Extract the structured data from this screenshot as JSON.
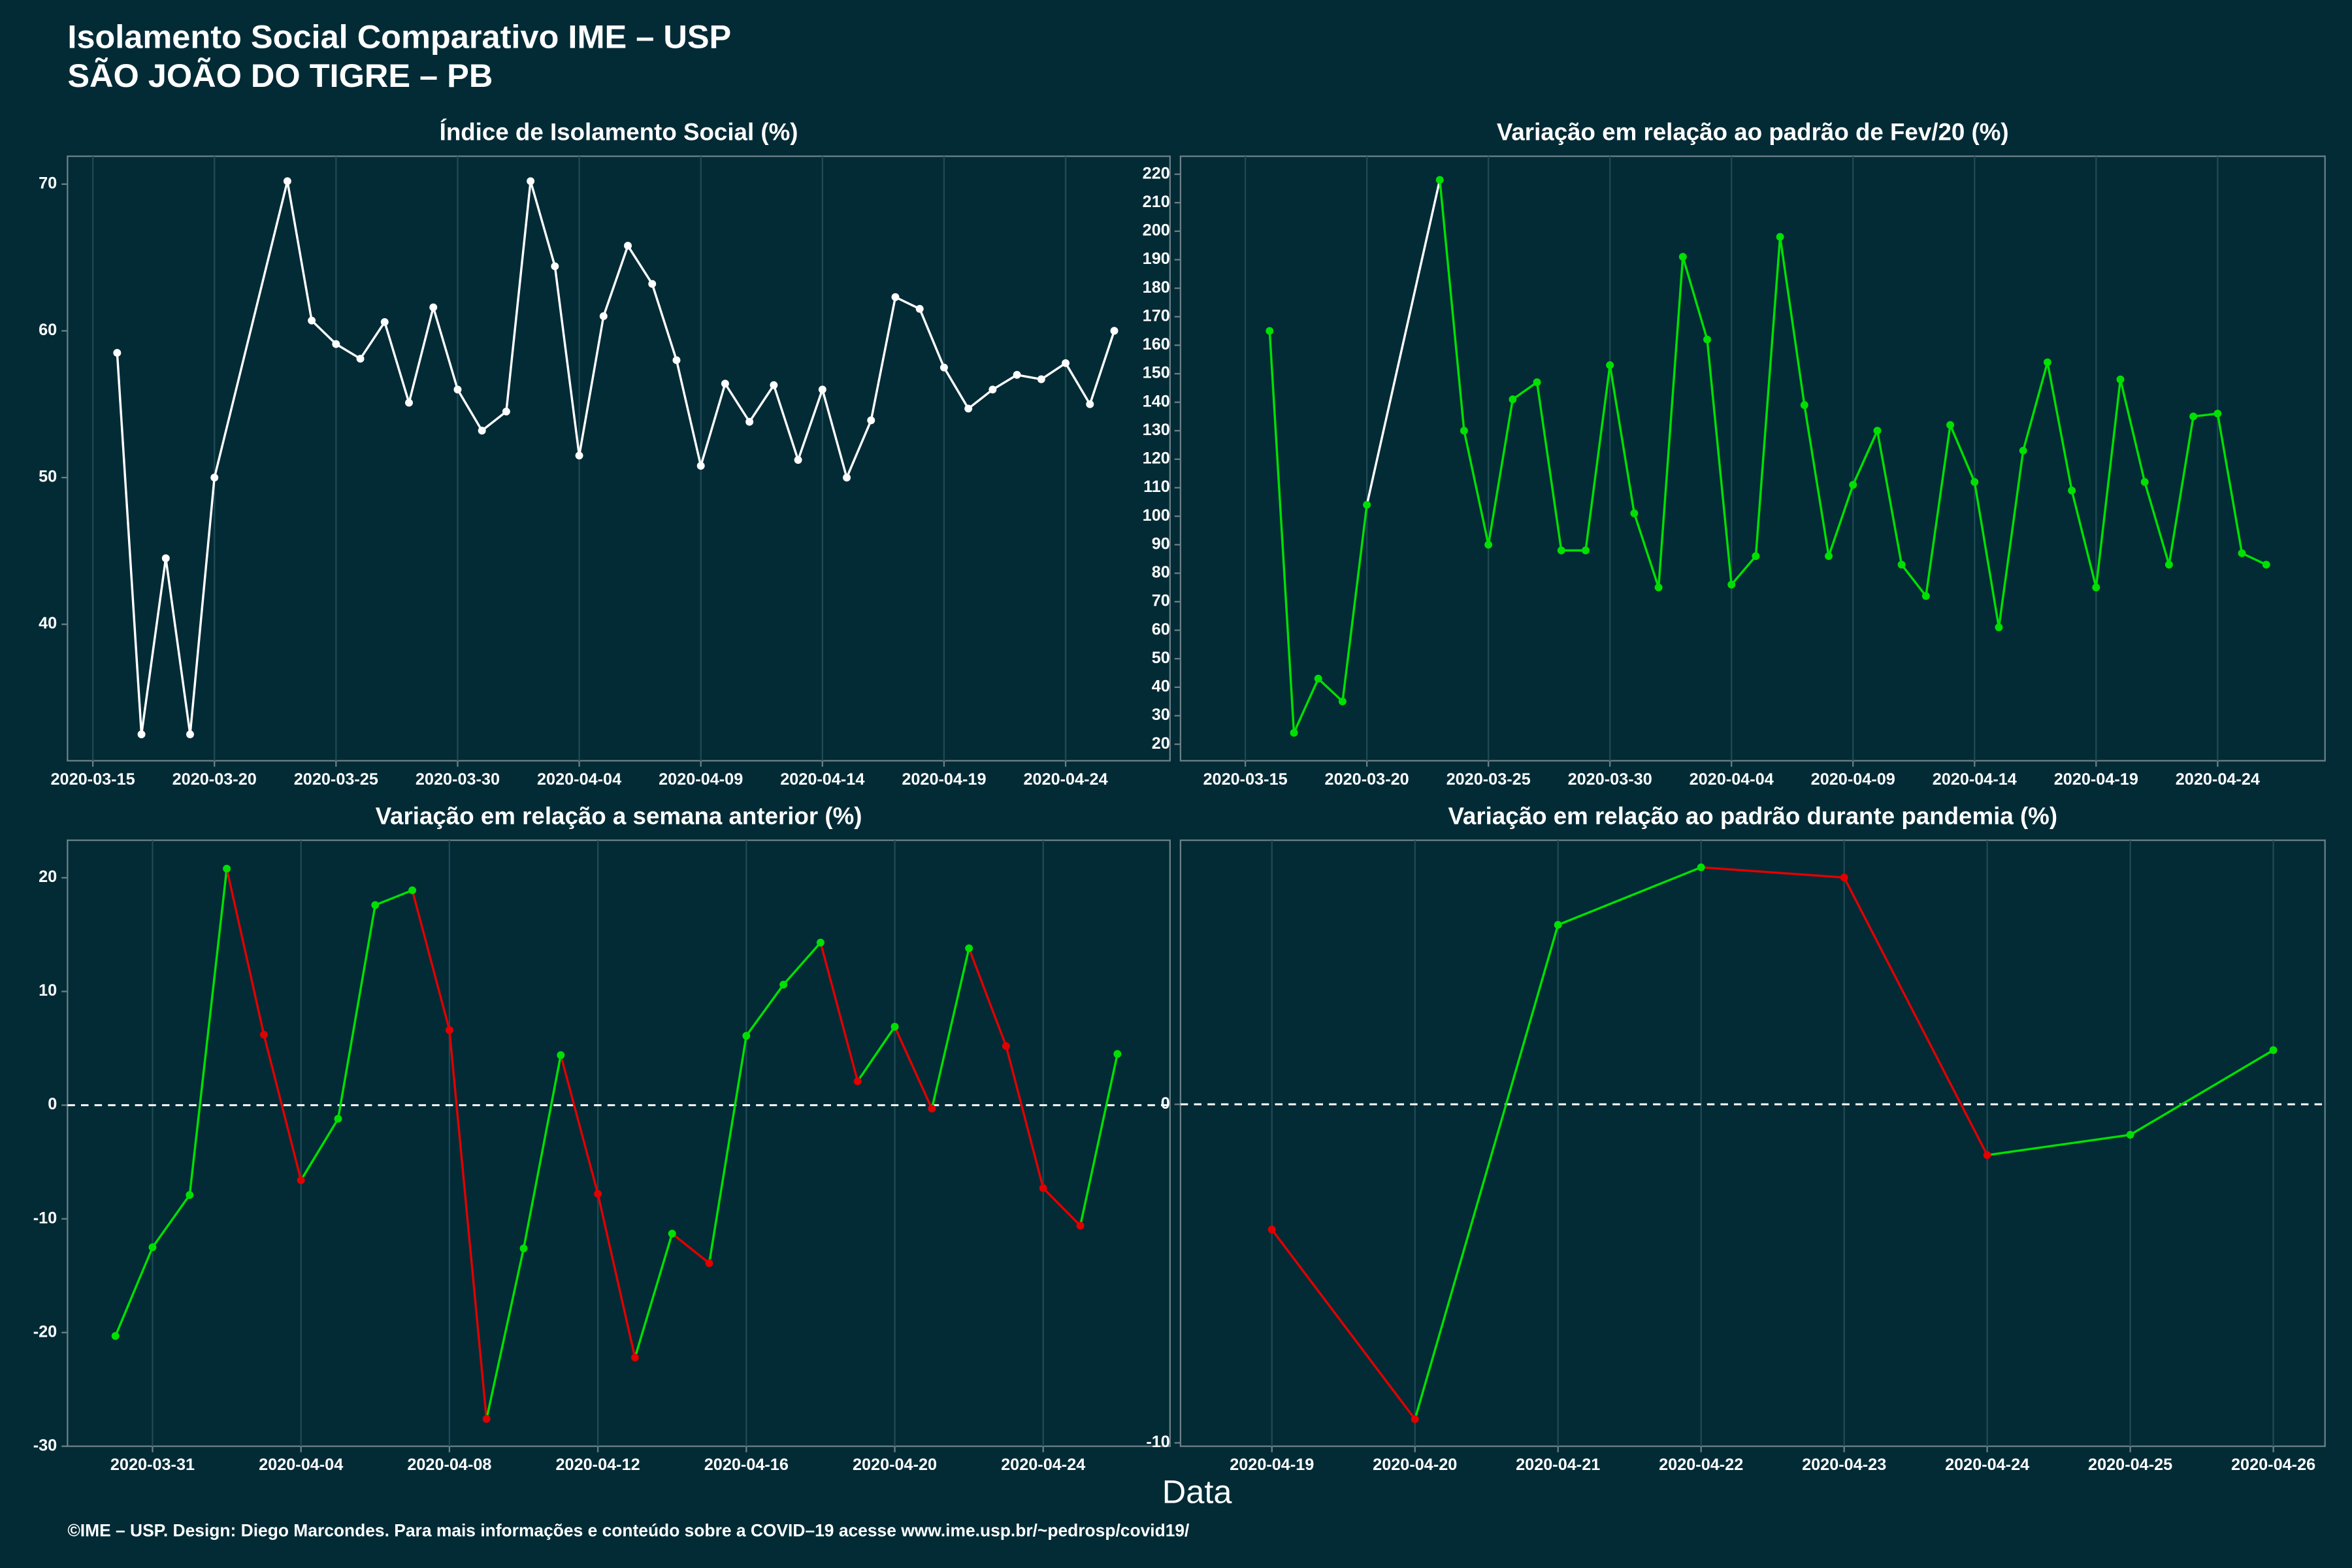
{
  "header": {
    "title": [
      "Isolamento Social Comparativo IME – USP",
      "SÃO JOÃO DO TIGRE – PB"
    ]
  },
  "x_label": "Data",
  "footer": "©IME – USP. Design: Diego Marcondes. Para mais informações e conteúdo sobre a COVID–19 acesse www.ime.usp.br/~pedrosp/covid19/",
  "chart_data": [
    {
      "type": "line",
      "title": "Índice de Isolamento Social (%)",
      "color": "#ffffff",
      "x": [
        "2020-03-16",
        "2020-03-17",
        "2020-03-18",
        "2020-03-19",
        "2020-03-20",
        "2020-03-23",
        "2020-03-24",
        "2020-03-25",
        "2020-03-26",
        "2020-03-27",
        "2020-03-28",
        "2020-03-29",
        "2020-03-30",
        "2020-03-31",
        "2020-04-01",
        "2020-04-02",
        "2020-04-03",
        "2020-04-04",
        "2020-04-05",
        "2020-04-06",
        "2020-04-07",
        "2020-04-08",
        "2020-04-09",
        "2020-04-10",
        "2020-04-11",
        "2020-04-12",
        "2020-04-13",
        "2020-04-14",
        "2020-04-15",
        "2020-04-16",
        "2020-04-17",
        "2020-04-18",
        "2020-04-19",
        "2020-04-20",
        "2020-04-21",
        "2020-04-22",
        "2020-04-23",
        "2020-04-24",
        "2020-04-25",
        "2020-04-26"
      ],
      "values": [
        58.5,
        32.5,
        44.5,
        32.5,
        50,
        70.2,
        60.7,
        59.1,
        58.1,
        60.6,
        55.1,
        61.6,
        56,
        53.2,
        54.5,
        70.2,
        64.4,
        51.5,
        61,
        65.8,
        63.2,
        58,
        50.8,
        56.4,
        53.8,
        56.3,
        51.2,
        56,
        50,
        53.9,
        62.3,
        61.5,
        57.5,
        54.7,
        56,
        57,
        56.7,
        57.8,
        55,
        60
      ],
      "xlim": [
        "2020-03-13T23:00",
        "2020-04-28T07:00"
      ],
      "xticks": [
        "2020-03-15",
        "2020-03-20",
        "2020-03-25",
        "2020-03-30",
        "2020-04-04",
        "2020-04-09",
        "2020-04-14",
        "2020-04-19",
        "2020-04-24"
      ],
      "ylim": [
        30.7,
        71.9
      ],
      "yticks": [
        40,
        50,
        60,
        70
      ]
    },
    {
      "type": "line",
      "title": "Variação em relação ao padrão de Fev/20 (%)",
      "color": "#00e000",
      "gap_color": "#ffffff",
      "x": [
        "2020-03-16",
        "2020-03-17",
        "2020-03-18",
        "2020-03-19",
        "2020-03-20",
        "2020-03-23",
        "2020-03-24",
        "2020-03-25",
        "2020-03-26",
        "2020-03-27",
        "2020-03-28",
        "2020-03-29",
        "2020-03-30",
        "2020-03-31",
        "2020-04-01",
        "2020-04-02",
        "2020-04-03",
        "2020-04-04",
        "2020-04-05",
        "2020-04-06",
        "2020-04-07",
        "2020-04-08",
        "2020-04-09",
        "2020-04-10",
        "2020-04-11",
        "2020-04-12",
        "2020-04-13",
        "2020-04-14",
        "2020-04-15",
        "2020-04-16",
        "2020-04-17",
        "2020-04-18",
        "2020-04-19",
        "2020-04-20",
        "2020-04-21",
        "2020-04-22",
        "2020-04-23",
        "2020-04-24",
        "2020-04-25",
        "2020-04-26"
      ],
      "values": [
        165,
        24,
        43,
        35,
        104,
        218,
        130,
        90,
        141,
        147,
        88,
        88,
        153,
        101,
        75,
        191,
        162,
        76,
        86,
        198,
        139,
        86,
        111,
        130,
        83,
        72,
        132,
        112,
        61,
        123,
        154,
        109,
        75,
        148,
        112,
        83,
        135,
        136,
        87,
        83
      ],
      "xlim": [
        "2020-03-12T08:00",
        "2020-04-28T10:00"
      ],
      "xticks": [
        "2020-03-15",
        "2020-03-20",
        "2020-03-25",
        "2020-03-30",
        "2020-04-04",
        "2020-04-09",
        "2020-04-14",
        "2020-04-19",
        "2020-04-24"
      ],
      "ylim": [
        14.2,
        226.3
      ],
      "yticks": [
        20,
        30,
        40,
        50,
        60,
        70,
        80,
        90,
        100,
        110,
        120,
        130,
        140,
        150,
        160,
        170,
        180,
        190,
        200,
        210,
        220
      ]
    },
    {
      "type": "line",
      "title": "Variação em relação a semana anterior (%)",
      "up_color": "#00e000",
      "down_color": "#e00000",
      "hline": 0,
      "x": [
        "2020-03-30",
        "2020-03-31",
        "2020-04-01",
        "2020-04-02",
        "2020-04-03",
        "2020-04-04",
        "2020-04-05",
        "2020-04-06",
        "2020-04-07",
        "2020-04-08",
        "2020-04-09",
        "2020-04-10",
        "2020-04-11",
        "2020-04-12",
        "2020-04-13",
        "2020-04-14",
        "2020-04-15",
        "2020-04-16",
        "2020-04-17",
        "2020-04-18",
        "2020-04-19",
        "2020-04-20",
        "2020-04-21",
        "2020-04-22",
        "2020-04-23",
        "2020-04-24",
        "2020-04-25",
        "2020-04-26"
      ],
      "values": [
        -20.3,
        -12.5,
        -7.9,
        20.8,
        6.2,
        -6.6,
        -1.2,
        17.6,
        18.9,
        6.6,
        -27.6,
        -12.6,
        4.4,
        -7.8,
        -22.2,
        -11.3,
        -13.9,
        6.1,
        10.6,
        14.3,
        2.1,
        6.9,
        -0.3,
        13.8,
        5.2,
        -7.3,
        -10.6,
        4.5
      ],
      "xlim": [
        "2020-03-28T17:00",
        "2020-04-27T10:00"
      ],
      "xticks": [
        "2020-03-31",
        "2020-04-04",
        "2020-04-08",
        "2020-04-12",
        "2020-04-16",
        "2020-04-20",
        "2020-04-24"
      ],
      "ylim": [
        -30,
        23.3
      ],
      "yticks": [
        -30,
        -20,
        -10,
        0,
        10,
        20
      ]
    },
    {
      "type": "line",
      "title": "Variação em relação ao padrão durante pandemia (%)",
      "up_color": "#00e000",
      "down_color": "#e00000",
      "hline": 0,
      "x": [
        "2020-04-19",
        "2020-04-20",
        "2020-04-21",
        "2020-04-22",
        "2020-04-23",
        "2020-04-24",
        "2020-04-25",
        "2020-04-26"
      ],
      "values": [
        -3.7,
        -9.3,
        5.3,
        7.0,
        6.7,
        -1.5,
        -0.9,
        1.6
      ],
      "xlim": [
        "2020-04-18T08:40",
        "2020-04-26T08:40"
      ],
      "xticks": [
        "2020-04-19",
        "2020-04-20",
        "2020-04-21",
        "2020-04-22",
        "2020-04-23",
        "2020-04-24",
        "2020-04-25",
        "2020-04-26"
      ],
      "ylim": [
        -10.1,
        7.8
      ],
      "yticks": [
        -10,
        0
      ]
    }
  ]
}
